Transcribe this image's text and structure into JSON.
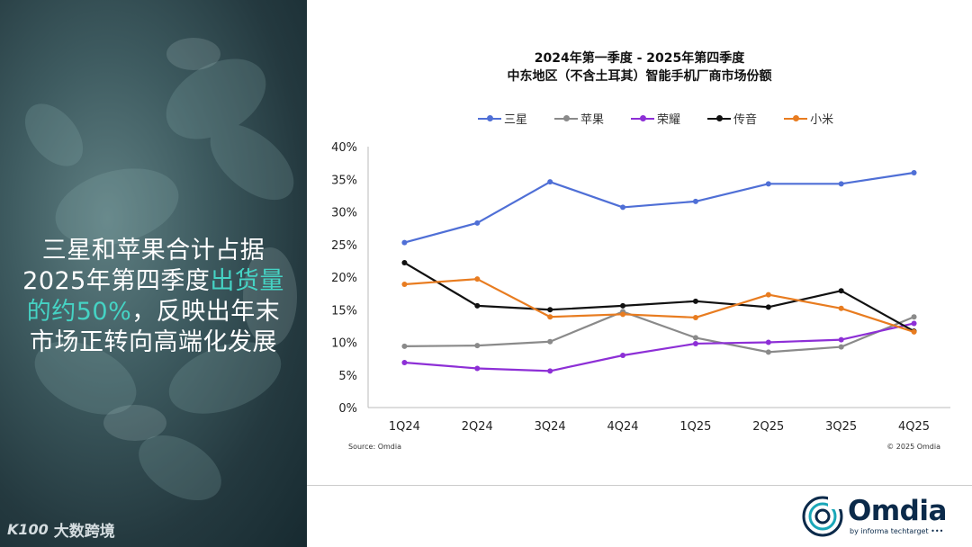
{
  "headline": {
    "part1": "三星和苹果合计占据",
    "part2": "2025年第四季度",
    "highlight1": "出货量",
    "highlight2": "的约50%",
    "part3": "，反映出年末",
    "part4": "市场正转向高端化发展"
  },
  "watermark": {
    "logo": "K100",
    "text": "大数跨境"
  },
  "brand": {
    "name": "Omdia",
    "sub": "by informa techtarget •••"
  },
  "colors": {
    "panel": "#2b4348",
    "highlight": "#45d3c4",
    "brand": "#0b2a4a"
  },
  "chart_data": {
    "type": "line",
    "title_line1": "2024年第一季度 - 2025年第四季度",
    "title_line2": "中东地区（不含土耳其）智能手机厂商市场份额",
    "categories": [
      "1Q24",
      "2Q24",
      "3Q24",
      "4Q24",
      "1Q25",
      "2Q25",
      "3Q25",
      "4Q25"
    ],
    "yticks": [
      "0%",
      "5%",
      "10%",
      "15%",
      "20%",
      "25%",
      "30%",
      "35%",
      "40%"
    ],
    "ylim": [
      0,
      40
    ],
    "grid": false,
    "legend_position": "top",
    "source": "Source: Omdia",
    "copyright": "© 2025 Omdia",
    "series": [
      {
        "name": "三星",
        "color": "#4f6fd6",
        "values": [
          25.3,
          28.3,
          34.6,
          30.7,
          31.6,
          34.3,
          34.3,
          36.0
        ]
      },
      {
        "name": "苹果",
        "color": "#8a8a8a",
        "values": [
          9.4,
          9.5,
          10.1,
          14.7,
          10.7,
          8.5,
          9.3,
          13.9
        ]
      },
      {
        "name": "荣耀",
        "color": "#8d2fd6",
        "values": [
          6.9,
          6.0,
          5.6,
          8.0,
          9.8,
          10.0,
          10.4,
          12.9
        ]
      },
      {
        "name": "传音",
        "color": "#111111",
        "values": [
          22.2,
          15.6,
          15.0,
          15.6,
          16.3,
          15.4,
          17.9,
          11.7
        ]
      },
      {
        "name": "小米",
        "color": "#e87c20",
        "values": [
          18.9,
          19.7,
          13.9,
          14.3,
          13.8,
          17.3,
          15.2,
          11.6
        ]
      }
    ]
  }
}
